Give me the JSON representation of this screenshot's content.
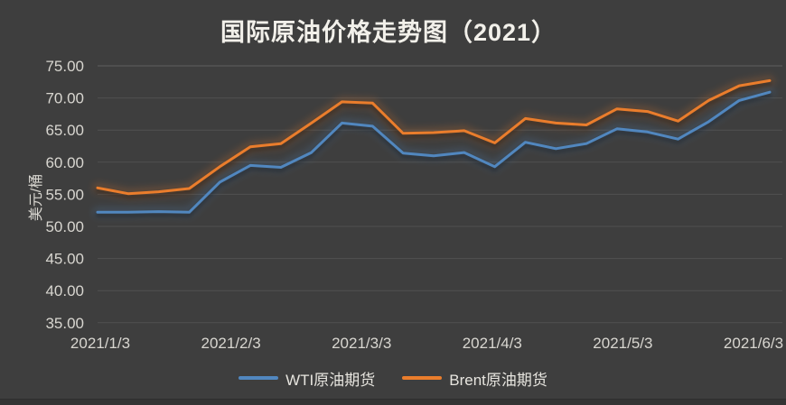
{
  "title": "国际原油价格走势图（2021）",
  "colors": {
    "background": "#3e3e3e",
    "title_text": "#f2f0ea",
    "axis_text": "#d8d6d0",
    "gridline": "#505050",
    "gridline_top": "#5e5e5e",
    "wti_blue": "#5187bf",
    "brent_orange": "#ea7d2c"
  },
  "chart_data": {
    "type": "line",
    "title": "国际原油价格走势图（2021）",
    "ylabel": "美元/桶",
    "xlabel": "",
    "ylim": [
      35,
      75
    ],
    "grid": true,
    "legend_position": "bottom",
    "y_tick_labels": [
      "75.00",
      "70.00",
      "65.00",
      "60.00",
      "55.00",
      "50.00",
      "45.00",
      "40.00",
      "35.00"
    ],
    "x_tick_labels": [
      "2021/1/3",
      "2021/2/3",
      "2021/3/3",
      "2021/4/3",
      "2021/5/3",
      "2021/6/3"
    ],
    "x_note": "weekly points, Jan–mid-June 2021",
    "series": [
      {
        "name": "WTI原油期货",
        "color": "#5187bf",
        "values": [
          52.2,
          52.2,
          52.3,
          52.2,
          56.9,
          59.5,
          59.2,
          61.5,
          66.1,
          65.6,
          61.4,
          61.0,
          61.5,
          59.3,
          63.1,
          62.1,
          62.9,
          65.2,
          64.7,
          63.6,
          66.3,
          69.6,
          70.9
        ]
      },
      {
        "name": "Brent原油期货",
        "color": "#ea7d2c",
        "values": [
          56.0,
          55.1,
          55.4,
          55.9,
          59.3,
          62.4,
          62.9,
          66.1,
          69.4,
          69.2,
          64.5,
          64.6,
          64.9,
          63.0,
          66.8,
          66.1,
          65.8,
          68.3,
          67.9,
          66.4,
          69.6,
          71.9,
          72.7
        ]
      }
    ]
  },
  "legend": {
    "wti_label": "WTI原油期货",
    "brent_label": "Brent原油期货"
  }
}
